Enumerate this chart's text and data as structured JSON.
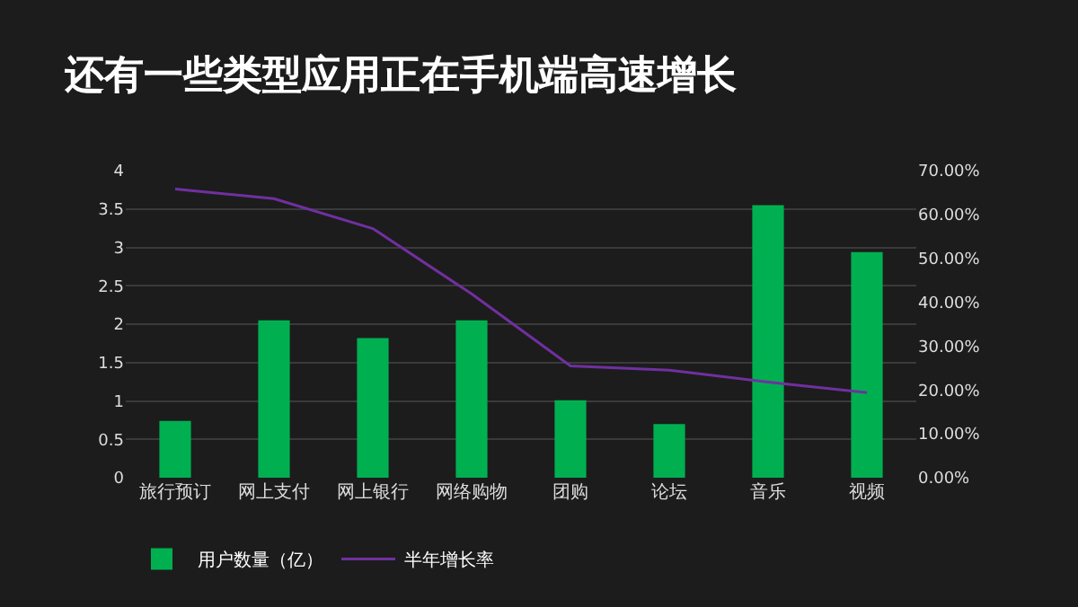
{
  "chart_data": {
    "type": "bar",
    "title": "还有一些类型应用正在手机端高速增长",
    "categories": [
      "旅行预订",
      "网上支付",
      "网上银行",
      "网络购物",
      "团购",
      "论坛",
      "音乐",
      "视频"
    ],
    "series": [
      {
        "name": "用户数量（亿）",
        "color": "#00b050",
        "values": [
          0.74,
          2.05,
          1.82,
          2.05,
          1.01,
          0.7,
          3.55,
          2.94
        ]
      },
      {
        "name": "半年增长率",
        "type": "line",
        "axis": "y2",
        "color": "#7030a0",
        "values": [
          65.8,
          63.6,
          56.8,
          41.9,
          25.5,
          24.5,
          21.8,
          19.4
        ]
      }
    ],
    "ylim": [
      0,
      4
    ],
    "yticks": [
      0,
      {
        "value": 0.5,
        "label": "0.5"
      },
      1,
      {
        "value": 1.5,
        "label": "1.5"
      },
      2,
      {
        "value": 2.5,
        "label": "2.5"
      },
      3,
      {
        "value": 3.5,
        "label": "3.5"
      },
      4
    ],
    "y2lim": [
      0,
      70
    ],
    "y2ticks": [
      {
        "value": 0,
        "label": "0.00%"
      },
      {
        "value": 10,
        "label": "10.00%"
      },
      {
        "value": 20,
        "label": "20.00%"
      },
      {
        "value": 30,
        "label": "30.00%"
      },
      {
        "value": 40,
        "label": "40.00%"
      },
      {
        "value": 50,
        "label": "50.00%"
      },
      {
        "value": 60,
        "label": "60.00%"
      },
      {
        "value": 70,
        "label": "70.00%"
      }
    ],
    "grid": "y",
    "legend": "bottom left"
  }
}
